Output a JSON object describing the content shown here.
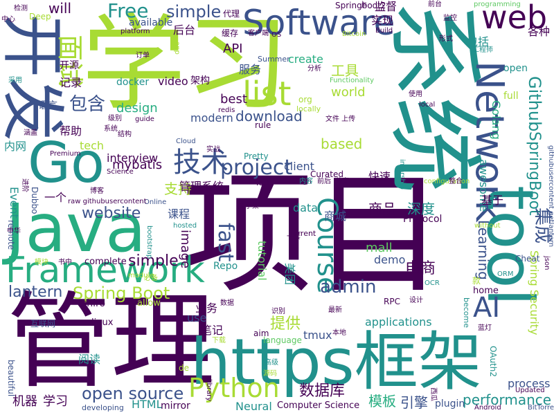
{
  "palette": {
    "dark_purple": "#440154",
    "indigo": "#3b528b",
    "teal": "#21918c",
    "green": "#27ad81",
    "lime": "#5ec962",
    "yellow_green": "#a8db34"
  },
  "words": [
    {
      "text": "学习",
      "color": "#a8db34"
    },
    {
      "text": "项目",
      "color": "#440154"
    },
    {
      "text": "管理",
      "color": "#440154"
    },
    {
      "text": "系统",
      "color": "#21918c"
    },
    {
      "text": "开发",
      "color": "#3b528b"
    },
    {
      "text": "Java",
      "color": "#27ad81"
    },
    {
      "text": "https框架",
      "color": "#21918c"
    },
    {
      "text": "Network",
      "color": "#3b528b"
    },
    {
      "text": "tool",
      "color": "#21918c"
    },
    {
      "text": "Go",
      "color": "#21918c"
    },
    {
      "text": "Framework",
      "color": "#27ad81"
    },
    {
      "text": "Software",
      "color": "#3b528b"
    },
    {
      "text": "web",
      "color": "#440154"
    },
    {
      "text": "list",
      "color": "#a8db34"
    },
    {
      "text": "Course",
      "color": "#21918c"
    },
    {
      "text": "技术",
      "color": "#3b528b"
    },
    {
      "text": "project",
      "color": "#3b528b"
    },
    {
      "text": "AI",
      "color": "#3b528b"
    },
    {
      "text": "Python",
      "color": "#a8db34"
    },
    {
      "text": "面试",
      "color": "#a8db34"
    },
    {
      "text": "Free",
      "color": "#21918c"
    },
    {
      "text": "simple",
      "color": "#3b528b"
    },
    {
      "text": "open source",
      "color": "#3b528b"
    },
    {
      "text": "Spring Boot",
      "color": "#a8db34"
    },
    {
      "text": "admin",
      "color": "#3b528b"
    },
    {
      "text": "包含",
      "color": "#3b528b"
    },
    {
      "text": "website",
      "color": "#3b528b"
    },
    {
      "text": "Github",
      "color": "#21918c"
    },
    {
      "text": "SpringBoot",
      "color": "#21918c"
    },
    {
      "text": "集成",
      "color": "#3b528b"
    },
    {
      "text": "fast",
      "color": "#3b528b"
    },
    {
      "text": "image",
      "color": "#440154"
    },
    {
      "text": "lantern",
      "color": "#3b528b"
    },
    {
      "text": "simple",
      "color": "#440154"
    },
    {
      "text": "Learning",
      "color": "#3b528b"
    },
    {
      "text": "awesome",
      "color": "#21918c"
    },
    {
      "text": "Golang",
      "color": "#27ad81"
    },
    {
      "text": "提供",
      "color": "#a8db34"
    },
    {
      "text": "电商",
      "color": "#440154"
    },
    {
      "text": "数据库",
      "color": "#440154"
    },
    {
      "text": "模板",
      "color": "#27ad81"
    },
    {
      "text": "引擎",
      "color": "#3b528b"
    },
    {
      "text": "performance",
      "color": "#21918c"
    },
    {
      "text": "商品",
      "color": "#440154"
    },
    {
      "text": "深度",
      "color": "#21918c"
    },
    {
      "text": "工具",
      "color": "#a8db34"
    },
    {
      "text": "支持",
      "color": "#a8db34"
    },
    {
      "text": "download",
      "color": "#3b528b"
    },
    {
      "text": "mybatis",
      "color": "#440154"
    },
    {
      "text": "based",
      "color": "#a8db34"
    },
    {
      "text": "best",
      "color": "#440154"
    },
    {
      "text": "world",
      "color": "#a8db34"
    },
    {
      "text": "design",
      "color": "#27ad81"
    },
    {
      "text": "API",
      "color": "#440154"
    },
    {
      "text": "will",
      "color": "#440154"
    },
    {
      "text": "机器",
      "color": "#440154"
    },
    {
      "text": "学习",
      "color": "#440154"
    },
    {
      "text": "Spring Security",
      "color": "#a8db34"
    },
    {
      "text": "tmux",
      "color": "#3b528b"
    },
    {
      "text": "tutorial",
      "color": "#5ec962"
    },
    {
      "text": "美团",
      "color": "#21918c"
    },
    {
      "text": "mall",
      "color": "#5ec962"
    },
    {
      "text": "demo",
      "color": "#3b528b"
    },
    {
      "text": "process",
      "color": "#3b528b"
    },
    {
      "text": "applications",
      "color": "#21918c"
    },
    {
      "text": "create",
      "color": "#27ad81"
    },
    {
      "text": "video",
      "color": "#440154"
    },
    {
      "text": "服务",
      "color": "#3b528b"
    },
    {
      "text": "后台",
      "color": "#440154"
    },
    {
      "text": "监督",
      "color": "#440154"
    },
    {
      "text": "实现",
      "color": "#440154"
    },
    {
      "text": "包括",
      "color": "#21918c"
    },
    {
      "text": "各种",
      "color": "#440154"
    },
    {
      "text": "管理系统",
      "color": "#440154"
    },
    {
      "text": "课程",
      "color": "#3b528b"
    },
    {
      "text": "基于",
      "color": "#440154"
    },
    {
      "text": "商城",
      "color": "#3b528b"
    },
    {
      "text": "快速",
      "color": "#440154"
    },
    {
      "text": "client",
      "color": "#3b528b"
    },
    {
      "text": "interview",
      "color": "#440154"
    },
    {
      "text": "modern",
      "color": "#3b528b"
    },
    {
      "text": "tech",
      "color": "#a8db34"
    },
    {
      "text": "data",
      "color": "#21918c"
    },
    {
      "text": "Event",
      "color": "#21918c"
    },
    {
      "text": "HTML",
      "color": "#21918c"
    },
    {
      "text": "Neural",
      "color": "#21918c"
    },
    {
      "text": "Computer Science",
      "color": "#440154"
    },
    {
      "text": "plugin",
      "color": "#3b528b"
    },
    {
      "text": "use",
      "color": "#3b528b"
    },
    {
      "text": "业务",
      "color": "#440154"
    },
    {
      "text": "笔记",
      "color": "#440154"
    },
    {
      "text": "阅读",
      "color": "#21918c"
    },
    {
      "text": "open",
      "color": "#21918c"
    },
    {
      "text": "full",
      "color": "#a8db34"
    },
    {
      "text": "Protocol",
      "color": "#440154"
    },
    {
      "text": "记录",
      "color": "#440154"
    },
    {
      "text": "架构",
      "color": "#440154"
    },
    {
      "text": "docker",
      "color": "#21918c"
    },
    {
      "text": "Repo",
      "color": "#21918c"
    },
    {
      "text": "语言",
      "color": "#3b528b"
    },
    {
      "text": "帮助",
      "color": "#440154"
    },
    {
      "text": "内网",
      "color": "#21918c"
    },
    {
      "text": "一个",
      "color": "#440154"
    },
    {
      "text": "开源",
      "color": "#440154"
    },
    {
      "text": "available",
      "color": "#3b528b"
    },
    {
      "text": "Springboot2",
      "color": "#440154"
    },
    {
      "text": "缓存",
      "color": "#440154"
    },
    {
      "text": "代理",
      "color": "#440154"
    },
    {
      "text": "Summer",
      "color": "#3b528b"
    },
    {
      "text": "shiro",
      "color": "#440154"
    },
    {
      "text": "linux",
      "color": "#440154"
    },
    {
      "text": "allow",
      "color": "#a8db34"
    },
    {
      "text": "complete",
      "color": "#440154"
    },
    {
      "text": "mirror",
      "color": "#440154"
    },
    {
      "text": "developing",
      "color": "#3b528b"
    },
    {
      "text": "beautiful",
      "color": "#3b528b"
    },
    {
      "text": "aim",
      "color": "#440154"
    },
    {
      "text": "language",
      "color": "#5ec962"
    },
    {
      "text": "Torrent",
      "color": "#440154"
    },
    {
      "text": "RPC",
      "color": "#440154"
    },
    {
      "text": "Android",
      "color": "#440154"
    },
    {
      "text": "BitTorrent",
      "color": "#3b528b"
    },
    {
      "text": "Updated",
      "color": "#440154"
    },
    {
      "text": "OCR",
      "color": "#21918c"
    },
    {
      "text": "ORM",
      "color": "#21918c"
    },
    {
      "text": "Cheat",
      "color": "#3b528b"
    },
    {
      "text": "home",
      "color": "#440154"
    },
    {
      "text": "become",
      "color": "#21918c"
    },
    {
      "text": "OAuth2",
      "color": "#21918c"
    },
    {
      "text": "Top",
      "color": "#440154"
    },
    {
      "text": "Pretty",
      "color": "#21918c"
    },
    {
      "text": "Curated",
      "color": "#440154"
    },
    {
      "text": "locally",
      "color": "#a8db34"
    },
    {
      "text": "org",
      "color": "#a8db34"
    },
    {
      "text": "local",
      "color": "#440154"
    },
    {
      "text": "high",
      "color": "#440154"
    },
    {
      "text": "configuration",
      "color": "#a8db34"
    },
    {
      "text": "Premium",
      "color": "#440154"
    },
    {
      "text": "Science",
      "color": "#440154"
    },
    {
      "text": "Online",
      "color": "#3b528b"
    },
    {
      "text": "raw githubusercontent",
      "color": "#440154"
    },
    {
      "text": "githubusercontent getlantern",
      "color": "#3b528b"
    },
    {
      "text": "Dubbo",
      "color": "#3b528b"
    },
    {
      "text": "remote",
      "color": "#3b528b"
    },
    {
      "text": "Cloud",
      "color": "#3b528b"
    },
    {
      "text": "guide",
      "color": "#440154"
    },
    {
      "text": "redis",
      "color": "#440154"
    },
    {
      "text": "rule",
      "color": "#440154"
    },
    {
      "text": "Build",
      "color": "#440154"
    },
    {
      "text": "Bitcoin",
      "color": "#a8db34"
    },
    {
      "text": "OS",
      "color": "#440154"
    },
    {
      "text": "platform",
      "color": "#440154"
    },
    {
      "text": "Deep",
      "color": "#a8db34"
    },
    {
      "text": "programming",
      "color": "#5ec962"
    },
    {
      "text": "Functionality",
      "color": "#5ec962"
    },
    {
      "text": "intership",
      "color": "#21918c"
    },
    {
      "text": "without",
      "color": "#a8db34"
    },
    {
      "text": "json",
      "color": "#440154"
    },
    {
      "text": "hosted",
      "color": "#21918c"
    },
    {
      "text": "bootstrap",
      "color": "#21918c"
    },
    {
      "text": "module",
      "color": "#a8db34"
    },
    {
      "text": "分析",
      "color": "#440154"
    },
    {
      "text": "订单",
      "color": "#440154"
    },
    {
      "text": "级别",
      "color": "#440154"
    },
    {
      "text": "数据",
      "color": "#440154"
    },
    {
      "text": "识别",
      "color": "#440154"
    },
    {
      "text": "最新",
      "color": "#440154"
    },
    {
      "text": "本地",
      "color": "#440154"
    },
    {
      "text": "必备",
      "color": "#a8db34"
    },
    {
      "text": "内容",
      "color": "#21918c"
    },
    {
      "text": "前后",
      "color": "#440154"
    },
    {
      "text": "分离",
      "color": "#440154"
    },
    {
      "text": "整合",
      "color": "#440154"
    },
    {
      "text": "监控",
      "color": "#440154"
    },
    {
      "text": "形式",
      "color": "#440154"
    },
    {
      "text": "工程师",
      "color": "#21918c"
    },
    {
      "text": "中心",
      "color": "#440154"
    },
    {
      "text": "博客",
      "color": "#440154"
    },
    {
      "text": "书中",
      "color": "#440154"
    },
    {
      "text": "模块",
      "color": "#a8db34"
    },
    {
      "text": "互联网",
      "color": "#3b528b"
    },
    {
      "text": "进阶",
      "color": "#440154"
    },
    {
      "text": "涵盖",
      "color": "#440154"
    },
    {
      "text": "采用",
      "color": "#21918c"
    },
    {
      "text": "检测",
      "color": "#440154"
    },
    {
      "text": "中华",
      "color": "#440154"
    },
    {
      "text": "脚手架",
      "color": "#440154"
    },
    {
      "text": "文件 上传",
      "color": "#440154"
    },
    {
      "text": "实战",
      "color": "#440154"
    },
    {
      "text": "客户端",
      "color": "#440154"
    },
    {
      "text": "前台",
      "color": "#440154"
    },
    {
      "text": "使用",
      "color": "#440154"
    },
    {
      "text": "一套",
      "color": "#440154"
    },
    {
      "text": "设计",
      "color": "#440154"
    },
    {
      "text": "下载",
      "color": "#a8db34"
    },
    {
      "text": "高级",
      "color": "#21918c"
    },
    {
      "text": "源码",
      "color": "#a8db34"
    },
    {
      "text": "蓝灯",
      "color": "#440154"
    },
    {
      "text": "款",
      "color": "#a8db34"
    },
    {
      "text": "js",
      "color": "#440154"
    },
    {
      "text": "app",
      "color": "#a8db34"
    },
    {
      "text": "springcloud",
      "color": "#a8db34"
    },
    {
      "text": "de",
      "color": "#a8db34"
    },
    {
      "text": "library",
      "color": "#440154"
    },
    {
      "text": "西瓜",
      "color": "#440154"
    },
    {
      "text": "系统",
      "color": "#440154"
    },
    {
      "text": "结构",
      "color": "#440154"
    }
  ]
}
